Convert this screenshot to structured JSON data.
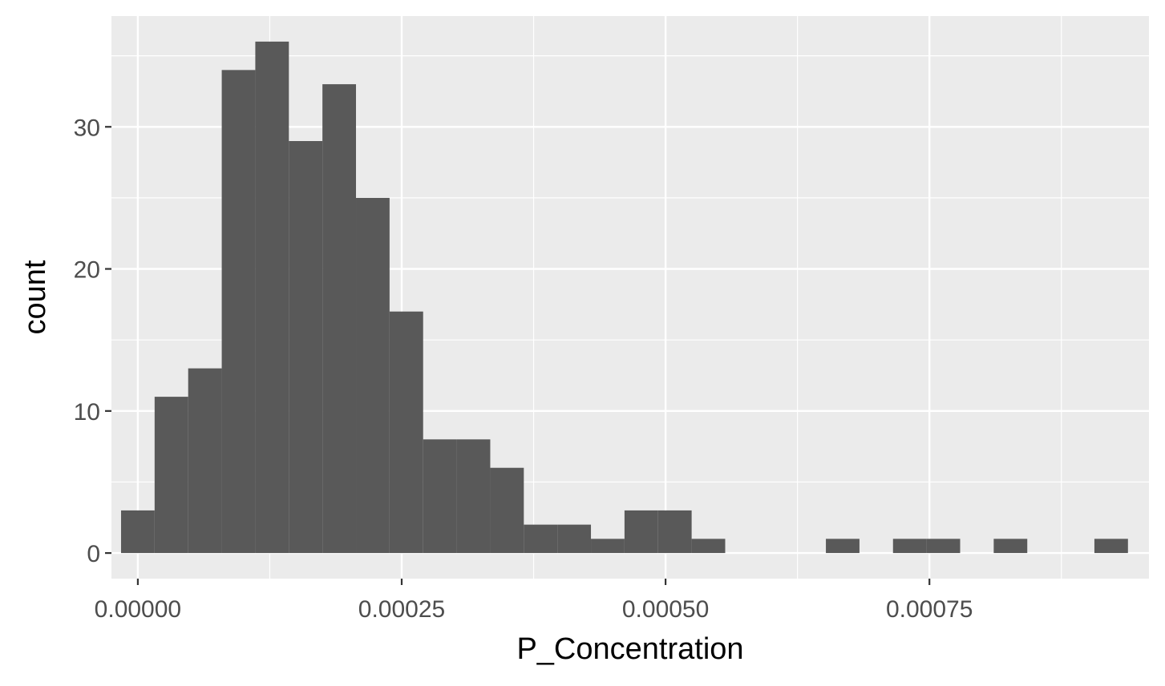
{
  "chart_data": {
    "type": "histogram",
    "title": "",
    "xlabel": "P_Concentration",
    "ylabel": "count",
    "xlim": [
      -2.5e-05,
      0.000958
    ],
    "ylim": [
      -1.8,
      37.8
    ],
    "x_ticks": [
      {
        "value": 0.0,
        "label": "0.00000"
      },
      {
        "value": 0.00025,
        "label": "0.00025"
      },
      {
        "value": 0.0005,
        "label": "0.00050"
      },
      {
        "value": 0.00075,
        "label": "0.00075"
      }
    ],
    "y_ticks": [
      {
        "value": 0,
        "label": "0"
      },
      {
        "value": 10,
        "label": "10"
      },
      {
        "value": 20,
        "label": "20"
      },
      {
        "value": 30,
        "label": "30"
      }
    ],
    "bin_width": 3.18e-05,
    "bins": [
      {
        "x0": -1.59e-05,
        "x1": 1.59e-05,
        "count": 3
      },
      {
        "x0": 1.59e-05,
        "x1": 4.77e-05,
        "count": 11
      },
      {
        "x0": 4.77e-05,
        "x1": 7.95e-05,
        "count": 13
      },
      {
        "x0": 7.95e-05,
        "x1": 0.0001113,
        "count": 34
      },
      {
        "x0": 0.0001113,
        "x1": 0.0001431,
        "count": 36
      },
      {
        "x0": 0.0001431,
        "x1": 0.0001749,
        "count": 29
      },
      {
        "x0": 0.0001749,
        "x1": 0.0002067,
        "count": 33
      },
      {
        "x0": 0.0002067,
        "x1": 0.0002385,
        "count": 25
      },
      {
        "x0": 0.0002385,
        "x1": 0.0002703,
        "count": 17
      },
      {
        "x0": 0.0002703,
        "x1": 0.0003021,
        "count": 8
      },
      {
        "x0": 0.0003021,
        "x1": 0.0003339,
        "count": 8
      },
      {
        "x0": 0.0003339,
        "x1": 0.0003657,
        "count": 6
      },
      {
        "x0": 0.0003657,
        "x1": 0.0003975,
        "count": 2
      },
      {
        "x0": 0.0003975,
        "x1": 0.0004293,
        "count": 2
      },
      {
        "x0": 0.0004293,
        "x1": 0.0004611,
        "count": 1
      },
      {
        "x0": 0.0004611,
        "x1": 0.0004929,
        "count": 3
      },
      {
        "x0": 0.0004929,
        "x1": 0.0005247,
        "count": 3
      },
      {
        "x0": 0.0005247,
        "x1": 0.0005565,
        "count": 1
      },
      {
        "x0": 0.0005565,
        "x1": 0.0005883,
        "count": 0
      },
      {
        "x0": 0.0005883,
        "x1": 0.0006201,
        "count": 0
      },
      {
        "x0": 0.0006201,
        "x1": 0.0006519,
        "count": 0
      },
      {
        "x0": 0.0006519,
        "x1": 0.0006837,
        "count": 1
      },
      {
        "x0": 0.0006837,
        "x1": 0.0007155,
        "count": 0
      },
      {
        "x0": 0.0007155,
        "x1": 0.0007473,
        "count": 1
      },
      {
        "x0": 0.0007473,
        "x1": 0.0007791,
        "count": 1
      },
      {
        "x0": 0.0007791,
        "x1": 0.0008109,
        "count": 0
      },
      {
        "x0": 0.0008109,
        "x1": 0.0008427,
        "count": 1
      },
      {
        "x0": 0.0008427,
        "x1": 0.0008745,
        "count": 0
      },
      {
        "x0": 0.0008745,
        "x1": 0.0009063,
        "count": 0
      },
      {
        "x0": 0.0009063,
        "x1": 0.0009381,
        "count": 1
      }
    ],
    "grid": true,
    "legend": "none",
    "colors": {
      "panel_background": "#ebebeb",
      "grid_lines": "#ffffff",
      "bar_fill": "#595959",
      "tick_marks": "#333333",
      "tick_labels": "#4d4d4d",
      "axis_titles": "#000000"
    }
  }
}
